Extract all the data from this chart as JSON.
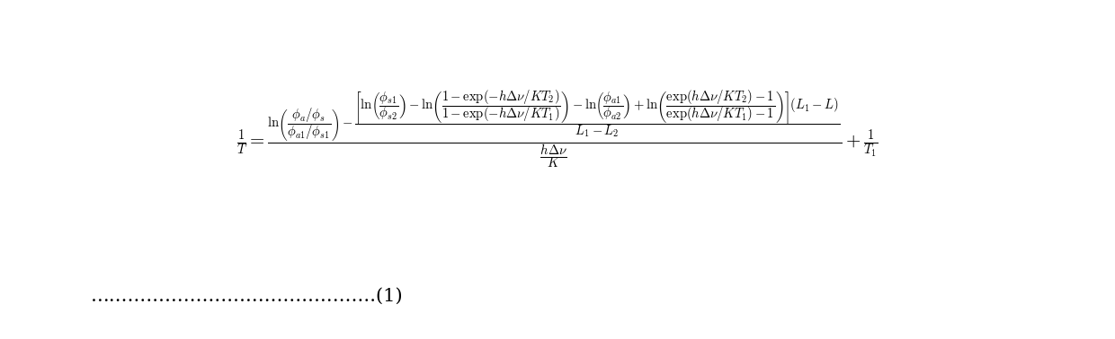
{
  "background_color": "#ffffff",
  "text_color": "#000000",
  "formula_fontsize": 15,
  "dots_text": "……………………………………….(1)",
  "figsize": [
    12.4,
    3.78
  ],
  "dpi": 100
}
